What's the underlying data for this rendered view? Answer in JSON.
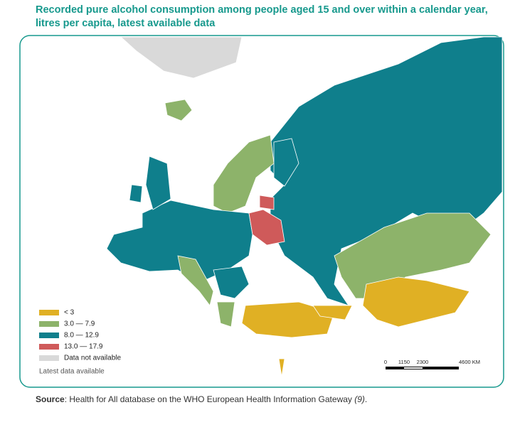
{
  "title": [
    "Recorded pure alcohol consumption among people aged 15 and over within a calendar year,",
    "litres per capita, latest available data"
  ],
  "legend": {
    "items": [
      {
        "label": "< 3",
        "color": "#e0b024"
      },
      {
        "label": "3.0 — 7.9",
        "color": "#8db36a"
      },
      {
        "label": "8.0 — 12.9",
        "color": "#0f7f8c"
      },
      {
        "label": "13.0 — 17.9",
        "color": "#cf5a5a"
      },
      {
        "label": "Data not available",
        "color": "#d9d9d9"
      }
    ],
    "note": "Latest data available"
  },
  "scale_bar": {
    "labels": [
      "0",
      "1150",
      "2300",
      "4600 KM"
    ]
  },
  "source": {
    "label": "Source",
    "text": ": Health for All database on the WHO European Health Information Gateway ",
    "ref": "(9)",
    "end": "."
  }
}
